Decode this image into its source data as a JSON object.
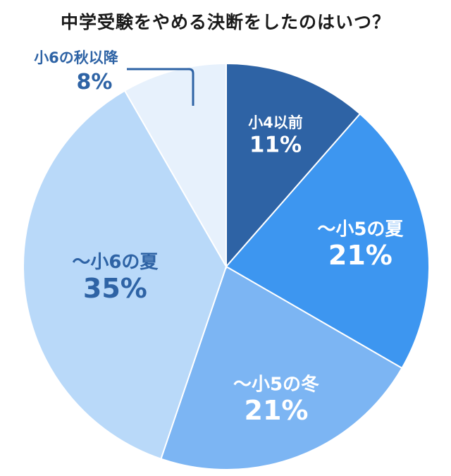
{
  "chart_data": {
    "type": "pie",
    "title": "中学受験をやめる決断をしたのはいつ？",
    "slices": [
      {
        "label": "小4以前",
        "value": 11,
        "value_label": "11%",
        "color": "#2e63a5",
        "text_color": "#ffffff"
      },
      {
        "label": "〜小5の夏",
        "value": 21,
        "value_label": "21%",
        "color": "#3d96f0",
        "text_color": "#ffffff"
      },
      {
        "label": "〜小5の冬",
        "value": 21,
        "value_label": "21%",
        "color": "#7cb5f3",
        "text_color": "#ffffff"
      },
      {
        "label": "〜小6の夏",
        "value": 35,
        "value_label": "35%",
        "color": "#b9d9f9",
        "text_color": "#2e63a5"
      },
      {
        "label": "小6の秋以降",
        "value": 8,
        "value_label": "8%",
        "color": "#e7f1fc",
        "text_color": "#2e63a5",
        "callout": true
      }
    ],
    "start_angle": "12 o'clock",
    "direction": "clockwise",
    "legend": "none"
  }
}
